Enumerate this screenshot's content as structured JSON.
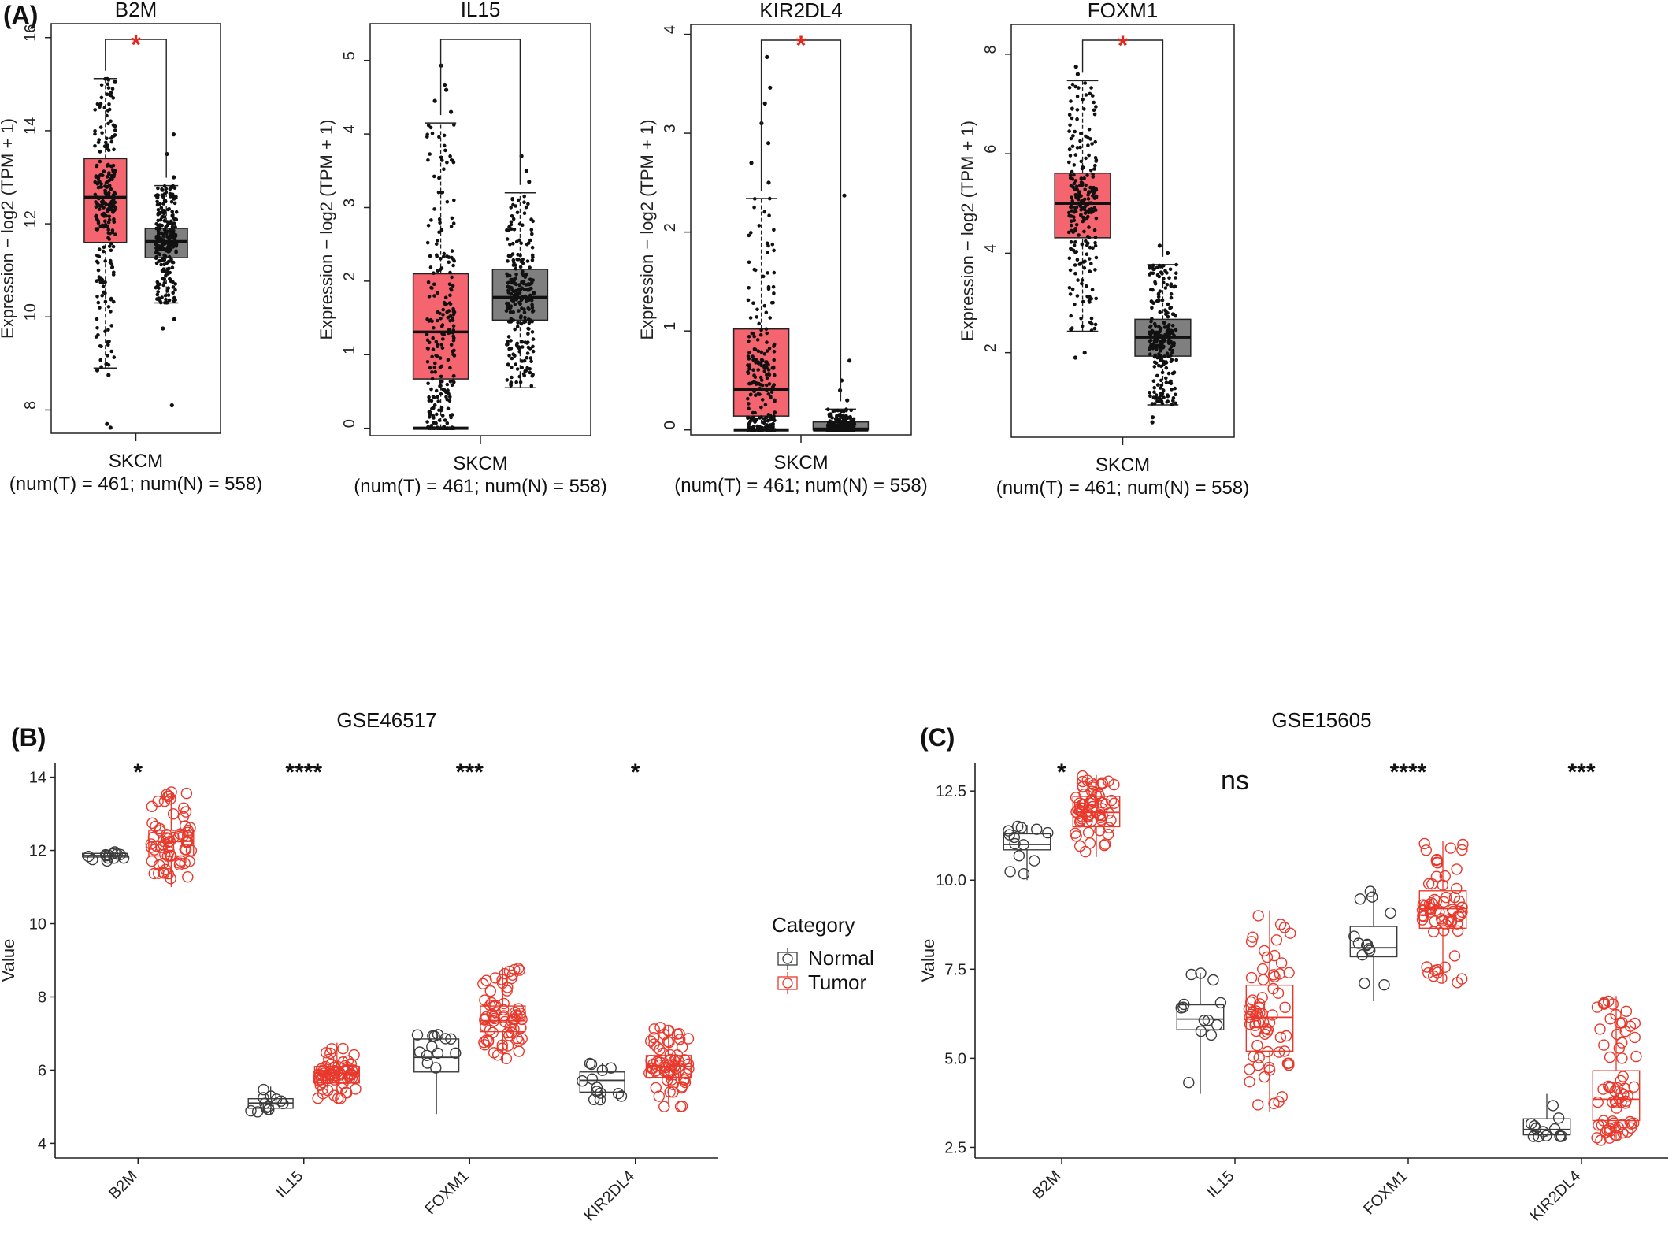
{
  "panels": {
    "a": "(A)",
    "b": "(B)",
    "c": "(C)"
  },
  "colors": {
    "tumor_fill": "#f4656f",
    "normal_fill": "#7f7f7f",
    "sig_star": "#e0281e",
    "tumor_line": "#e8392c",
    "normal_line": "#3c3c3c"
  },
  "legend": {
    "title": "Category",
    "items": [
      "Normal",
      "Tumor"
    ]
  },
  "chart_data": [
    {
      "type": "box",
      "title": "B2M",
      "ylabel": "Expression − log2 (TPM + 1)",
      "xlabel": "SKCM",
      "caption": "(num(T) = 461; num(N) = 558)",
      "ylim": [
        7.5,
        16.3
      ],
      "yticks": [
        8,
        10,
        12,
        14,
        16
      ],
      "significance": "*",
      "series": [
        {
          "name": "Tumor",
          "n": 461,
          "whisker_low": 8.9,
          "q1": 11.6,
          "median": 12.57,
          "q3": 13.4,
          "whisker_high": 15.12,
          "outliers": [
            8.75,
            8.85,
            7.7,
            7.62
          ]
        },
        {
          "name": "Normal",
          "n": 558,
          "whisker_low": 10.3,
          "q1": 11.27,
          "median": 11.62,
          "q3": 11.9,
          "whisker_high": 12.82,
          "outliers": [
            13.0,
            13.5,
            13.92,
            9.75,
            9.95,
            8.1
          ]
        }
      ]
    },
    {
      "type": "box",
      "title": "IL15",
      "ylabel": "Expression − log2 (TPM + 1)",
      "xlabel": "SKCM",
      "caption": "(num(T) = 461; num(N) = 558)",
      "ylim": [
        -0.1,
        5.5
      ],
      "yticks": [
        0,
        1,
        2,
        3,
        4,
        5
      ],
      "significance": "",
      "series": [
        {
          "name": "Tumor",
          "n": 461,
          "whisker_low": 0.0,
          "q1": 0.67,
          "median": 1.31,
          "q3": 2.1,
          "whisker_high": 4.15,
          "outliers": [
            4.3,
            4.45,
            4.6,
            4.67,
            4.93
          ]
        },
        {
          "name": "Normal",
          "n": 558,
          "whisker_low": 0.55,
          "q1": 1.47,
          "median": 1.78,
          "q3": 2.16,
          "whisker_high": 3.2,
          "outliers": [
            3.35,
            3.5,
            3.7
          ]
        }
      ]
    },
    {
      "type": "box",
      "title": "KIR2DL4",
      "ylabel": "Expression − log2 (TPM + 1)",
      "xlabel": "SKCM",
      "caption": "(num(T) = 461; num(N) = 558)",
      "ylim": [
        -0.05,
        4.1
      ],
      "yticks": [
        0,
        1,
        2,
        3,
        4
      ],
      "significance": "*",
      "series": [
        {
          "name": "Tumor",
          "n": 461,
          "whisker_low": 0.0,
          "q1": 0.14,
          "median": 0.41,
          "q3": 1.02,
          "whisker_high": 2.34,
          "outliers": [
            2.5,
            2.7,
            2.9,
            3.1,
            3.3,
            3.46,
            3.77
          ]
        },
        {
          "name": "Normal",
          "n": 558,
          "whisker_low": 0.0,
          "q1": 0.0,
          "median": 0.01,
          "q3": 0.08,
          "whisker_high": 0.21,
          "outliers": [
            0.3,
            0.4,
            0.5,
            0.7,
            2.37
          ]
        }
      ]
    },
    {
      "type": "box",
      "title": "FOXM1",
      "ylabel": "Expression − log2 (TPM + 1)",
      "xlabel": "SKCM",
      "caption": "(num(T) = 461; num(N) = 558)",
      "ylim": [
        0.3,
        8.6
      ],
      "yticks": [
        2,
        4,
        6,
        8
      ],
      "significance": "*",
      "series": [
        {
          "name": "Tumor",
          "n": 461,
          "whisker_low": 2.43,
          "q1": 4.31,
          "median": 5.0,
          "q3": 5.61,
          "whisker_high": 7.47,
          "outliers": [
            2.0,
            1.9,
            7.6,
            7.75
          ]
        },
        {
          "name": "Normal",
          "n": 558,
          "whisker_low": 0.95,
          "q1": 1.93,
          "median": 2.31,
          "q3": 2.67,
          "whisker_high": 3.77,
          "outliers": [
            4.0,
            4.15,
            0.7,
            0.6
          ]
        }
      ]
    },
    {
      "type": "box",
      "title": "GSE46517",
      "ylabel": "Value",
      "categories": [
        "B2M",
        "IL15",
        "FOXM1",
        "KIR2DL4"
      ],
      "ylim": [
        3.6,
        14.4
      ],
      "yticks": [
        4,
        6,
        8,
        10,
        12,
        14
      ],
      "significance": [
        "*",
        "****",
        "***",
        "*"
      ],
      "series": [
        {
          "name": "Normal",
          "boxes": [
            {
              "whisker_low": 11.7,
              "q1": 11.82,
              "median": 11.86,
              "q3": 11.92,
              "whisker_high": 11.98
            },
            {
              "whisker_low": 4.8,
              "q1": 4.96,
              "median": 5.1,
              "q3": 5.22,
              "whisker_high": 5.55
            },
            {
              "whisker_low": 4.8,
              "q1": 5.95,
              "median": 6.35,
              "q3": 6.85,
              "whisker_high": 7.1
            },
            {
              "whisker_low": 5.1,
              "q1": 5.4,
              "median": 5.72,
              "q3": 5.95,
              "whisker_high": 6.2
            }
          ]
        },
        {
          "name": "Tumor",
          "boxes": [
            {
              "whisker_low": 11.0,
              "q1": 11.85,
              "median": 12.25,
              "q3": 12.55,
              "whisker_high": 13.6
            },
            {
              "whisker_low": 5.2,
              "q1": 5.65,
              "median": 5.92,
              "q3": 6.1,
              "whisker_high": 6.75
            },
            {
              "whisker_low": 6.2,
              "q1": 7.05,
              "median": 7.35,
              "q3": 7.75,
              "whisker_high": 8.8
            },
            {
              "whisker_low": 5.0,
              "q1": 5.8,
              "median": 6.1,
              "q3": 6.4,
              "whisker_high": 7.2
            }
          ]
        }
      ]
    },
    {
      "type": "box",
      "title": "GSE15605",
      "ylabel": "Value",
      "categories": [
        "B2M",
        "IL15",
        "FOXM1",
        "KIR2DL4"
      ],
      "ylim": [
        2.2,
        13.3
      ],
      "yticks": [
        2.5,
        5.0,
        7.5,
        10.0,
        12.5
      ],
      "significance": [
        "*",
        "ns",
        "****",
        "***"
      ],
      "series": [
        {
          "name": "Normal",
          "boxes": [
            {
              "whisker_low": 10.0,
              "q1": 10.85,
              "median": 11.0,
              "q3": 11.3,
              "whisker_high": 11.55
            },
            {
              "whisker_low": 4.0,
              "q1": 5.8,
              "median": 6.1,
              "q3": 6.5,
              "whisker_high": 7.4
            },
            {
              "whisker_low": 6.6,
              "q1": 7.85,
              "median": 8.1,
              "q3": 8.7,
              "whisker_high": 9.8
            },
            {
              "whisker_low": 2.8,
              "q1": 2.85,
              "median": 3.0,
              "q3": 3.3,
              "whisker_high": 4.0
            }
          ]
        },
        {
          "name": "Tumor",
          "boxes": [
            {
              "whisker_low": 10.65,
              "q1": 11.5,
              "median": 11.9,
              "q3": 12.35,
              "whisker_high": 12.95
            },
            {
              "whisker_low": 3.5,
              "q1": 5.2,
              "median": 6.15,
              "q3": 7.05,
              "whisker_high": 9.15
            },
            {
              "whisker_low": 7.1,
              "q1": 8.65,
              "median": 9.2,
              "q3": 9.7,
              "whisker_high": 11.1
            },
            {
              "whisker_low": 2.7,
              "q1": 3.25,
              "median": 3.85,
              "q3": 4.65,
              "whisker_high": 6.75
            }
          ]
        }
      ]
    }
  ]
}
